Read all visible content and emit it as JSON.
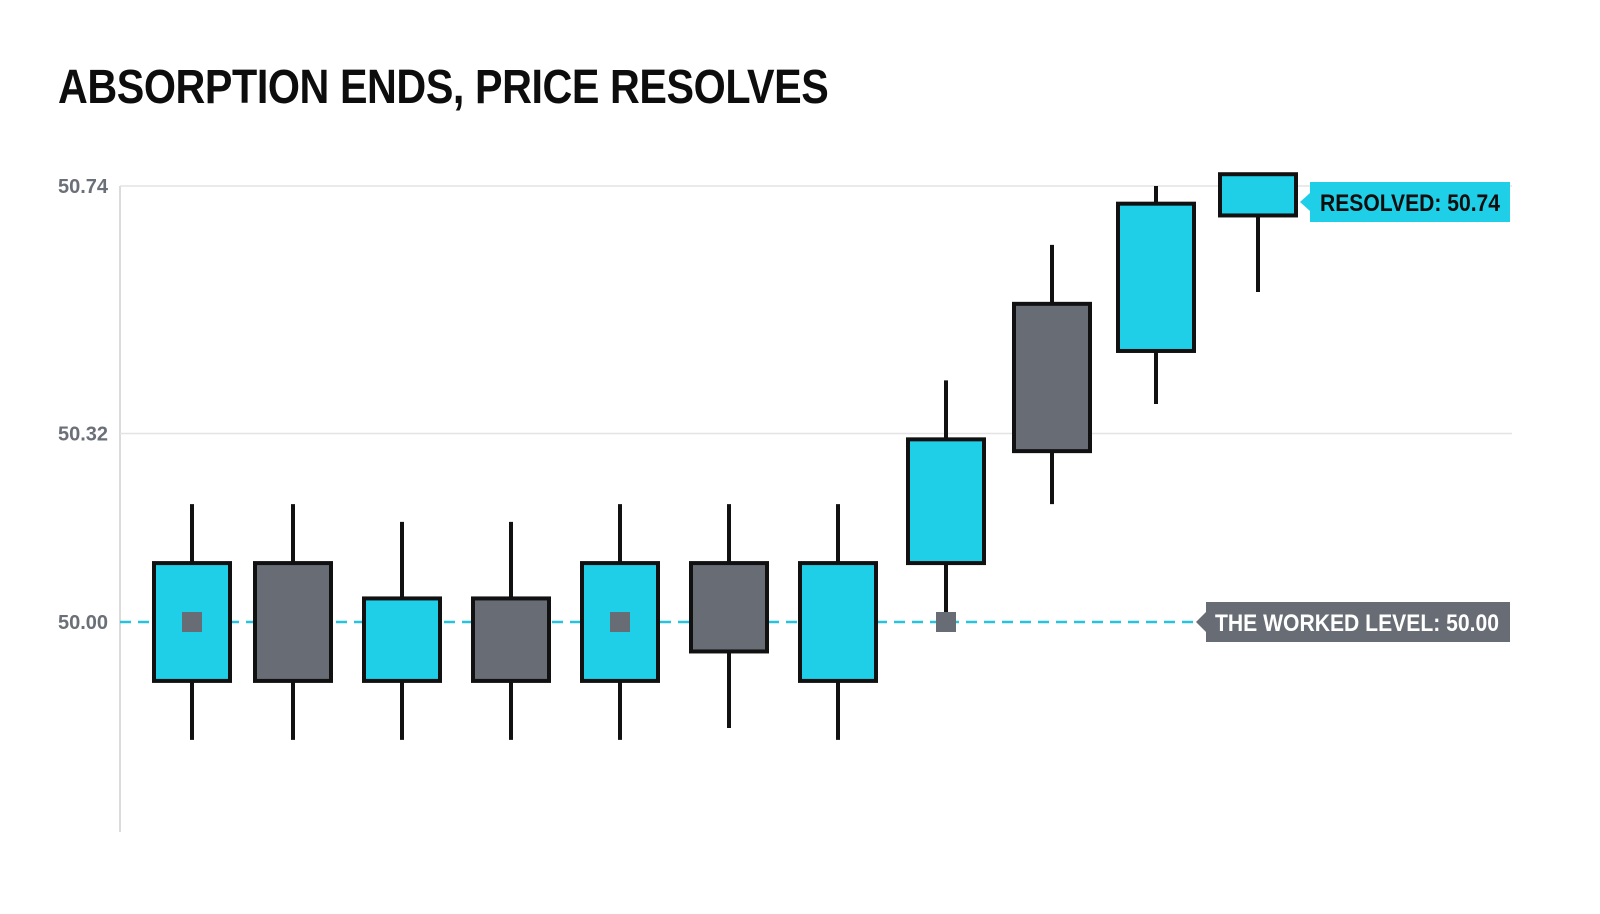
{
  "chart_data": {
    "type": "candlestick",
    "title": "ABSORPTION ENDS, PRICE RESOLVES",
    "ylim": [
      49.61,
      50.76
    ],
    "y_ticks": [
      {
        "value": 50.74,
        "label": "50.74"
      },
      {
        "value": 50.32,
        "label": "50.32"
      },
      {
        "value": 50.0,
        "label": "50.00"
      }
    ],
    "grid": "horizontal",
    "candles": [
      {
        "open": 49.9,
        "high": 50.2,
        "low": 49.8,
        "close": 50.1,
        "direction": "up",
        "test_marker": true
      },
      {
        "open": 50.1,
        "high": 50.2,
        "low": 49.8,
        "close": 49.9,
        "direction": "down",
        "test_marker": false
      },
      {
        "open": 49.9,
        "high": 50.17,
        "low": 49.8,
        "close": 50.04,
        "direction": "up",
        "test_marker": false
      },
      {
        "open": 50.04,
        "high": 50.17,
        "low": 49.8,
        "close": 49.9,
        "direction": "down",
        "test_marker": false
      },
      {
        "open": 49.9,
        "high": 50.2,
        "low": 49.8,
        "close": 50.1,
        "direction": "up",
        "test_marker": true
      },
      {
        "open": 50.1,
        "high": 50.2,
        "low": 49.82,
        "close": 49.95,
        "direction": "down",
        "test_marker": false
      },
      {
        "open": 49.9,
        "high": 50.2,
        "low": 49.8,
        "close": 50.1,
        "direction": "up",
        "test_marker": false
      },
      {
        "open": 50.1,
        "high": 50.41,
        "low": 50.0,
        "close": 50.31,
        "direction": "up",
        "test_marker": true
      },
      {
        "open": 50.54,
        "high": 50.64,
        "low": 50.2,
        "close": 50.29,
        "direction": "down",
        "test_marker": false
      },
      {
        "open": 50.46,
        "high": 50.74,
        "low": 50.37,
        "close": 50.71,
        "direction": "up",
        "test_marker": false
      },
      {
        "open": 50.69,
        "high": 50.76,
        "low": 50.56,
        "close": 50.76,
        "direction": "up",
        "test_marker": false
      }
    ],
    "annotations": {
      "level": {
        "value": 50.0,
        "label": "THE WORKED LEVEL: 50.00"
      },
      "resolved": {
        "value": 50.74,
        "label": "RESOLVED: 50.74"
      }
    },
    "colors": {
      "up": "#1fcfe8",
      "down": "#676c75",
      "outline": "#111111",
      "level_line": "#27c3dc",
      "grid": "#e3e3e3",
      "axis": "#cfcfcf",
      "level_badge_bg": "#676c75",
      "level_badge_text": "#ffffff",
      "resolved_badge_bg": "#1fcfe8",
      "resolved_badge_text": "#0d0d0d",
      "marker": "#676c75"
    }
  }
}
